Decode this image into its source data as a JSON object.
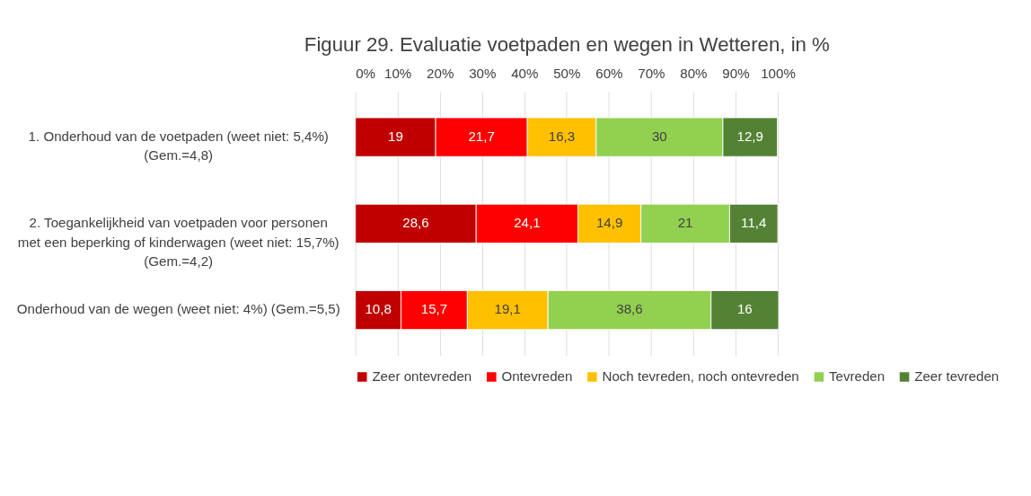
{
  "chart_data": {
    "type": "bar",
    "orientation": "horizontal",
    "stacked": true,
    "title": "Figuur 29. Evaluatie voetpaden en wegen in Wetteren, in %",
    "categories": [
      "1. Onderhoud van de voetpaden (weet niet: 5,4%)\n(Gem.=4,8)",
      "2. Toegankelijkheid van voetpaden voor personen\nmet een beperking of kinderwagen (weet niet: 15,7%)\n(Gem.=4,2)",
      "Onderhoud van de wegen (weet niet: 4%) (Gem.=5,5)"
    ],
    "series": [
      {
        "name": "Zeer ontevreden",
        "color": "#c00000",
        "values": [
          19,
          28.6,
          10.8
        ],
        "value_labels": [
          "19",
          "28,6",
          "10,8"
        ]
      },
      {
        "name": "Ontevreden",
        "color": "#ff0000",
        "values": [
          21.7,
          24.1,
          15.7
        ],
        "value_labels": [
          "21,7",
          "24,1",
          "15,7"
        ]
      },
      {
        "name": "Noch tevreden, noch ontevreden",
        "color": "#ffc000",
        "values": [
          16.3,
          14.9,
          19.1
        ],
        "value_labels": [
          "16,3",
          "14,9",
          "19,1"
        ]
      },
      {
        "name": "Tevreden",
        "color": "#92d050",
        "values": [
          30,
          21,
          38.6
        ],
        "value_labels": [
          "30",
          "21",
          "38,6"
        ]
      },
      {
        "name": "Zeer tevreden",
        "color": "#548235",
        "values": [
          12.9,
          11.4,
          16
        ],
        "value_labels": [
          "12,9",
          "11,4",
          "16"
        ]
      }
    ],
    "xlim": [
      0,
      100.2
    ],
    "xticks": [
      {
        "value": 0,
        "label": "0%"
      },
      {
        "value": 10,
        "label": "10%"
      },
      {
        "value": 20,
        "label": "20%"
      },
      {
        "value": 30,
        "label": "30%"
      },
      {
        "value": 40,
        "label": "40%"
      },
      {
        "value": 50,
        "label": "50%"
      },
      {
        "value": 60,
        "label": "60%"
      },
      {
        "value": 70,
        "label": "70%"
      },
      {
        "value": 80,
        "label": "80%"
      },
      {
        "value": 90,
        "label": "90%"
      },
      {
        "value": 100,
        "label": "100%"
      }
    ],
    "grid": "x",
    "legend": "bottom"
  }
}
